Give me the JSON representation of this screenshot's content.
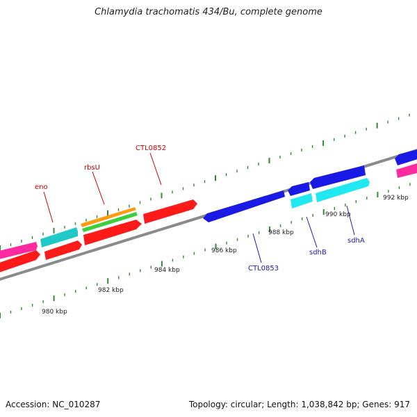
{
  "title": "Chlamydia trachomatis 434/Bu, complete genome",
  "footer": {
    "accession": "Accession: NC_010287",
    "summary": "Topology: circular; Length: 1,038,842 bp; Genes: 917"
  },
  "colors": {
    "backbone": "#8a8a8a",
    "tick": "#2d8a2d",
    "red_label": "#cc0000",
    "blue_label": "#1a1aaa",
    "red": "#ff1a1a",
    "blue": "#1a1ae6",
    "cyan": "#20e8f0",
    "teal": "#20c8c8",
    "magenta": "#ff2aa0",
    "orange": "#ff9a10",
    "green": "#3ccf3c"
  },
  "scale": {
    "unit": "kbp",
    "tick_labels": [
      "980 kbp",
      "982 kbp",
      "984 kbp",
      "986 kbp",
      "988 kbp",
      "990 kbp",
      "992 kbp"
    ]
  },
  "gene_labels_top": [
    "eno",
    "rbsU",
    "CTL0852"
  ],
  "gene_labels_bottom": [
    "CTL0853",
    "sdhB",
    "sdhA"
  ]
}
